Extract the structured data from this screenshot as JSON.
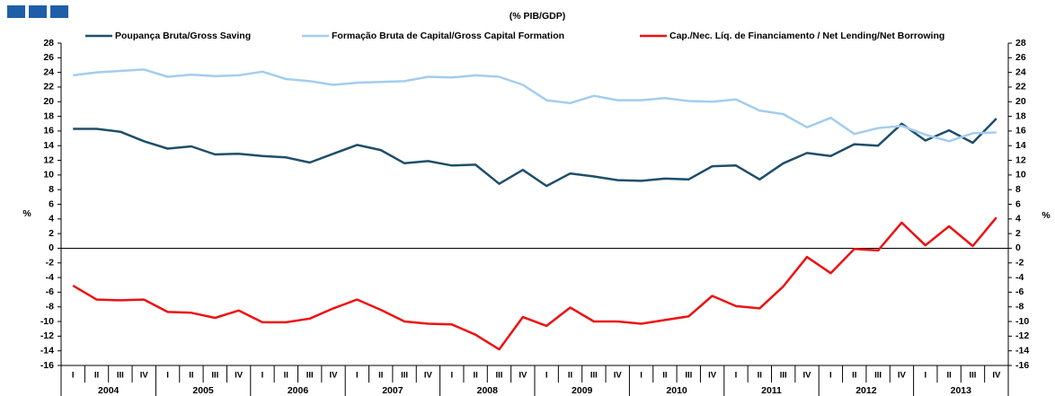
{
  "chart_data": {
    "type": "line",
    "title": "(% PIB/GDP)",
    "ylabel": "%",
    "y2label": "%",
    "categories": [
      "I",
      "II",
      "III",
      "IV",
      "I",
      "II",
      "III",
      "IV",
      "I",
      "II",
      "III",
      "IV",
      "I",
      "II",
      "III",
      "IV",
      "I",
      "II",
      "III",
      "IV",
      "I",
      "II",
      "III",
      "IV",
      "I",
      "II",
      "III",
      "IV",
      "I",
      "II",
      "III",
      "IV",
      "I",
      "II",
      "III",
      "IV",
      "I",
      "II",
      "III",
      "IV"
    ],
    "years": [
      "2004",
      "2005",
      "2006",
      "2007",
      "2008",
      "2009",
      "2010",
      "2011",
      "2012",
      "2013"
    ],
    "series": [
      {
        "name": "Poupança Bruta/Gross Saving",
        "color": "#1f4e6b",
        "values": [
          16.3,
          16.3,
          15.9,
          14.6,
          13.6,
          13.9,
          12.8,
          12.9,
          12.6,
          12.4,
          11.7,
          12.9,
          14.1,
          13.4,
          11.6,
          11.9,
          11.3,
          11.4,
          8.8,
          10.7,
          8.5,
          10.2,
          9.8,
          9.3,
          9.2,
          9.5,
          9.4,
          11.2,
          11.3,
          9.4,
          11.6,
          13.0,
          12.6,
          14.2,
          14.0,
          17.0,
          14.7,
          16.1,
          14.4,
          17.7
        ]
      },
      {
        "name": "Formação Bruta de Capital/Gross Capital Formation",
        "color": "#a3cdee",
        "values": [
          23.6,
          24.0,
          24.2,
          24.4,
          23.4,
          23.7,
          23.5,
          23.6,
          24.1,
          23.1,
          22.8,
          22.3,
          22.6,
          22.7,
          22.8,
          23.4,
          23.3,
          23.6,
          23.4,
          22.3,
          20.2,
          19.8,
          20.8,
          20.2,
          20.2,
          20.5,
          20.1,
          20.0,
          20.3,
          18.8,
          18.3,
          16.5,
          17.8,
          15.6,
          16.4,
          16.7,
          15.5,
          14.6,
          15.7,
          15.8
        ]
      },
      {
        "name": "Cap./Nec. Líq. de Financiamento / Net Lending/Net Borrowing",
        "color": "#ee1111",
        "values": [
          -5.1,
          -7.0,
          -7.1,
          -7.0,
          -8.7,
          -8.8,
          -9.5,
          -8.5,
          -10.1,
          -10.1,
          -9.6,
          -8.2,
          -7.0,
          -8.4,
          -10.0,
          -10.3,
          -10.4,
          -11.8,
          -13.8,
          -9.4,
          -10.6,
          -8.1,
          -10.0,
          -10.0,
          -10.3,
          -9.8,
          -9.3,
          -6.5,
          -7.9,
          -8.2,
          -5.2,
          -1.2,
          -3.4,
          -0.1,
          -0.3,
          3.5,
          0.4,
          3.0,
          0.3,
          4.2
        ]
      }
    ],
    "ylim": [
      -16,
      28
    ],
    "yticks": [
      -16,
      -14,
      -12,
      -10,
      -8,
      -6,
      -4,
      -2,
      0,
      2,
      4,
      6,
      8,
      10,
      12,
      14,
      16,
      18,
      20,
      22,
      24,
      26,
      28
    ],
    "y2lim": [
      -16,
      28
    ],
    "y2ticks": [
      -16,
      -14,
      -12,
      -10,
      -8,
      -6,
      -4,
      -2,
      0,
      2,
      4,
      6,
      8,
      10,
      12,
      14,
      16,
      18,
      20,
      22,
      24,
      26,
      28
    ],
    "grid": false
  }
}
